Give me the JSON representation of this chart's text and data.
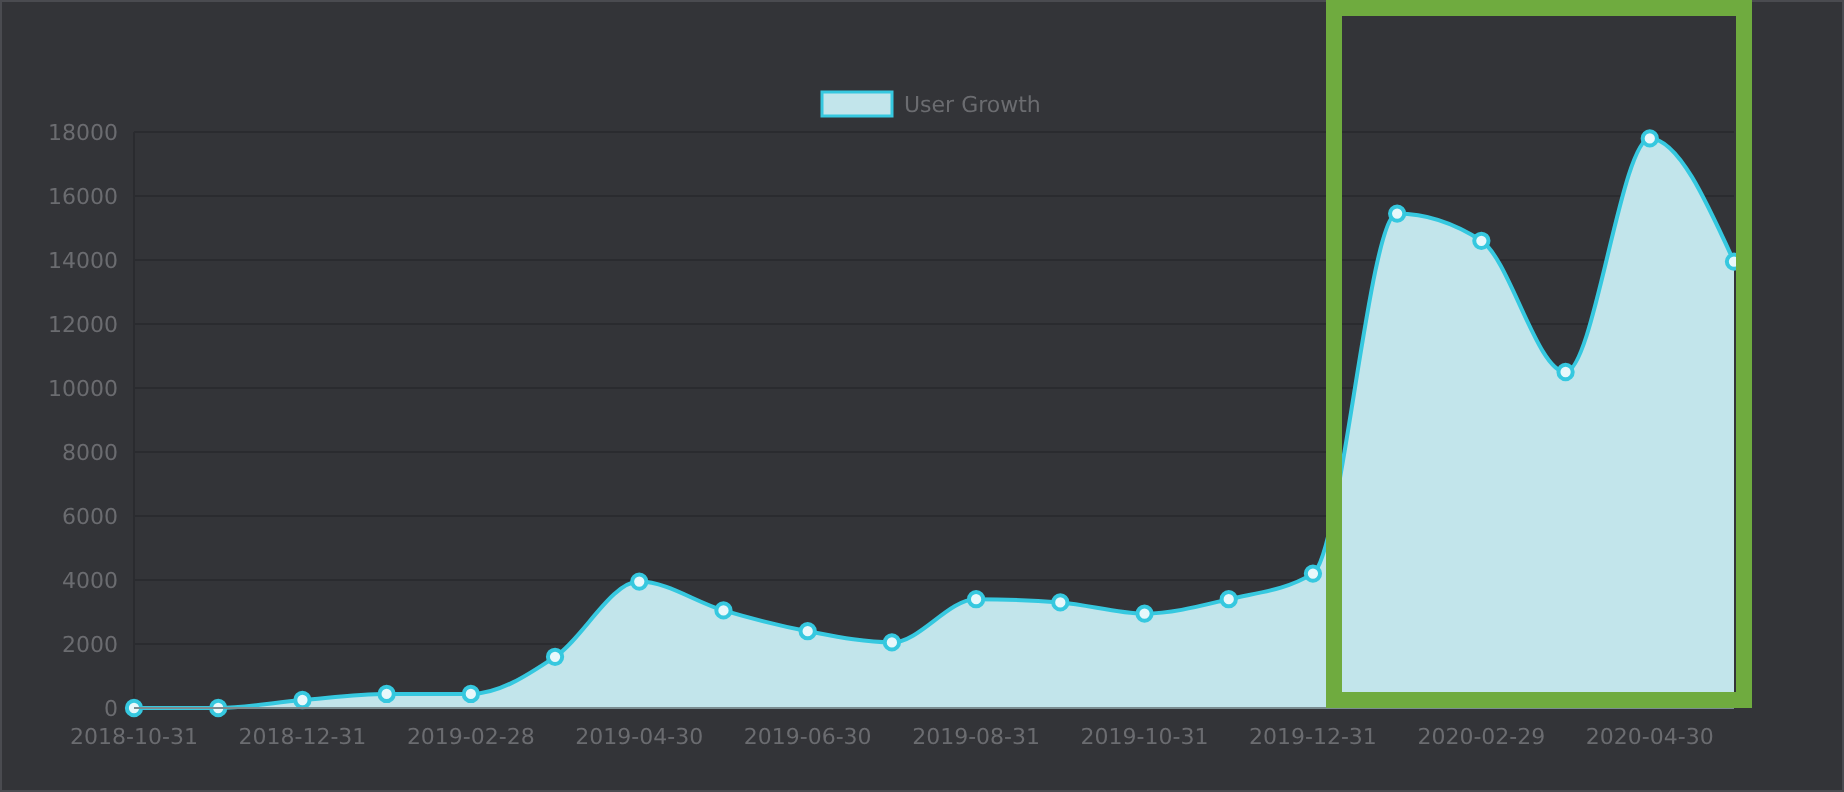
{
  "chart_data": {
    "type": "area",
    "categories": [
      "2018-10-31",
      null,
      "2018-12-31",
      null,
      "2019-02-28",
      null,
      "2019-04-30",
      null,
      "2019-06-30",
      null,
      "2019-08-31",
      null,
      "2019-10-31",
      null,
      "2019-12-31",
      null,
      "2020-02-29",
      null,
      "2020-04-30",
      null
    ],
    "series": [
      {
        "name": "User Growth",
        "color": "#36c8df",
        "values": [
          0,
          0,
          250,
          440,
          440,
          1600,
          3950,
          3050,
          2400,
          2050,
          3400,
          3300,
          2950,
          3400,
          4200,
          15450,
          14600,
          10500,
          17800,
          13950
        ]
      }
    ],
    "ylim": [
      0,
      18000
    ],
    "yticks": [
      0,
      2000,
      4000,
      6000,
      8000,
      10000,
      12000,
      14000,
      16000,
      18000
    ],
    "grid": "y",
    "legend": "top",
    "marker": "circle"
  }
}
